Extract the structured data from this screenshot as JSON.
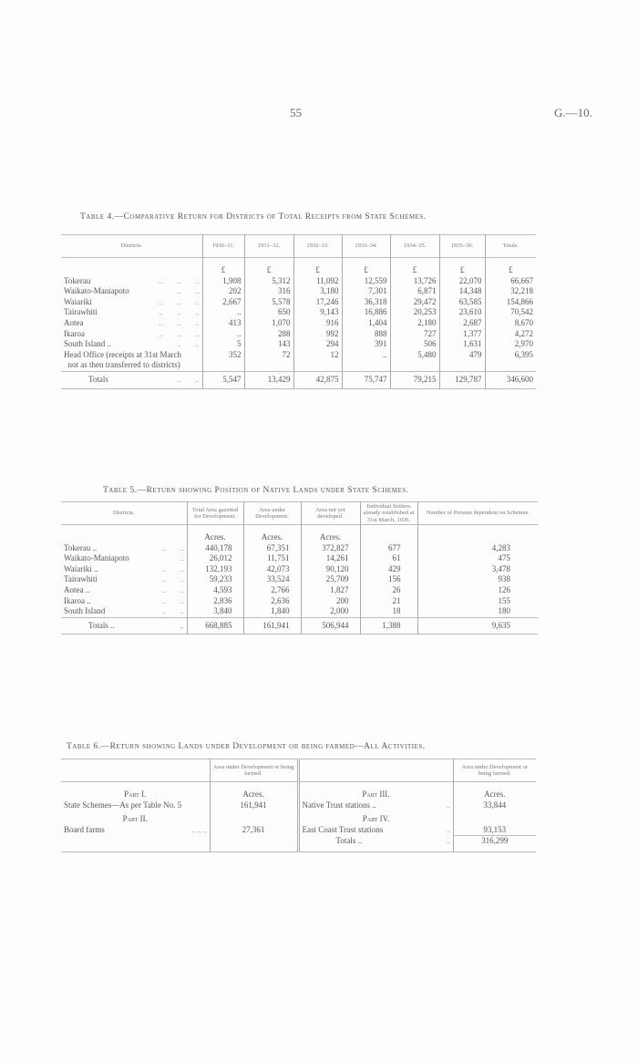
{
  "header": {
    "page_number": "55",
    "reference": "G.—10."
  },
  "table4": {
    "title": "Table 4.—Comparative Return for Districts of Total Receipts from State Schemes.",
    "columns": [
      "Districts.",
      "1930–31.",
      "1931–32.",
      "1932–33.",
      "1933–34.",
      "1934–35.",
      "1935–36.",
      "Totals."
    ],
    "unit": "£",
    "rows": [
      {
        "district": "Tokerau",
        "dots": "..        ..        ..",
        "values": [
          "1,908",
          "5,312",
          "11,092",
          "12,559",
          "13,726",
          "22,070",
          "66,667"
        ]
      },
      {
        "district": "Waikato-Maniapoto",
        "dots": "..        ..",
        "values": [
          "202",
          "316",
          "3,180",
          "7,301",
          "6,871",
          "14,348",
          "32,218"
        ]
      },
      {
        "district": "Waiariki",
        "dots": "..        ..        ..",
        "values": [
          "2,667",
          "5,578",
          "17,246",
          "36,318",
          "29,472",
          "63,585",
          "154,866"
        ]
      },
      {
        "district": "Tairawhiti",
        "dots": "..        ..        ..",
        "values": [
          "..",
          "650",
          "9,143",
          "16,886",
          "20,253",
          "23,610",
          "70,542"
        ]
      },
      {
        "district": "Aotea",
        "dots": "..        ..        ..",
        "values": [
          "413",
          "1,070",
          "916",
          "1,404",
          "2,180",
          "2,687",
          "8,670"
        ]
      },
      {
        "district": "Ikaroa",
        "dots": "..        ..        ..",
        "values": [
          "..",
          "288",
          "992",
          "888",
          "727",
          "1,377",
          "4,272"
        ]
      },
      {
        "district": "South Island ..",
        "dots": "..        ..",
        "values": [
          "5",
          "143",
          "294",
          "391",
          "506",
          "1,631",
          "2,970"
        ]
      },
      {
        "district": "Head Office (receipts at 31st March",
        "dots": "",
        "values": [
          "352",
          "72",
          "12",
          "..",
          "5,480",
          "479",
          "6,395"
        ]
      },
      {
        "district": "  not as then transferred to districts)",
        "dots": "",
        "values": [
          "",
          "",
          "",
          "",
          "",
          "",
          ""
        ]
      }
    ],
    "totals": {
      "label": "Totals",
      "dots": "..        ..",
      "values": [
        "5,547",
        "13,429",
        "42,875",
        "75,747",
        "79,215",
        "129,787",
        "346,600"
      ]
    }
  },
  "table5": {
    "title": "Table 5.—Return showing Position of Native Lands under State Schemes.",
    "columns": [
      "Districts.",
      "Total Area gazetted for Development.",
      "Area under Development.",
      "Area not yet developed.",
      "Individual Settlers already established at 31st March, 1936.",
      "Number of Persons dependent on Schemes."
    ],
    "units": [
      "Acres.",
      "Acres.",
      "Acres.",
      "",
      ""
    ],
    "rows": [
      {
        "district": "Tokerau ..",
        "dots": "..        ..",
        "values": [
          "440,178",
          "67,351",
          "372,827",
          "677",
          "4,283"
        ]
      },
      {
        "district": "Waikato-Maniapoto",
        "dots": "..",
        "values": [
          "26,012",
          "11,751",
          "14,261",
          "61",
          "475"
        ]
      },
      {
        "district": "Waiariki ..",
        "dots": "..        ..",
        "values": [
          "132,193",
          "42,073",
          "90,120",
          "429",
          "3,478"
        ]
      },
      {
        "district": "Tairawhiti",
        "dots": "..        ..",
        "values": [
          "59,233",
          "33,524",
          "25,709",
          "156",
          "938"
        ]
      },
      {
        "district": "Aotea ..",
        "dots": "..        ..",
        "values": [
          "4,593",
          "2,766",
          "1,827",
          "26",
          "126"
        ]
      },
      {
        "district": "Ikaroa ..",
        "dots": "..        ..",
        "values": [
          "2,836",
          "2,636",
          "200",
          "21",
          "155"
        ]
      },
      {
        "district": "South Island",
        "dots": "..        ..",
        "values": [
          "3,840",
          "1,840",
          "2,000",
          "18",
          "180"
        ]
      }
    ],
    "totals": {
      "label": "Totals ..",
      "dots": "..",
      "values": [
        "668,885",
        "161,941",
        "506,944",
        "1,388",
        "9,635"
      ]
    }
  },
  "table6": {
    "title": "Table 6.—Return showing Lands under Development or being farmed—All Activities.",
    "col_header": "Area under Development or being farmed.",
    "unit": "Acres.",
    "part1": {
      "heading": "Part I.",
      "label": "State Schemes—As per Table No. 5",
      "value": "161,941"
    },
    "part2": {
      "heading": "Part II.",
      "label": "Board farms",
      "dots": "..        ..        ..",
      "value": "27,361"
    },
    "part3": {
      "heading": "Part III.",
      "label": "Native Trust stations ..",
      "dots": "..",
      "value": "33,844"
    },
    "part4": {
      "heading": "Part IV.",
      "label": "East Coast Trust stations",
      "dots": "..",
      "value": "93,153"
    },
    "totals": {
      "label": "Totals   ..",
      "dots": "..",
      "value": "316,299"
    }
  }
}
